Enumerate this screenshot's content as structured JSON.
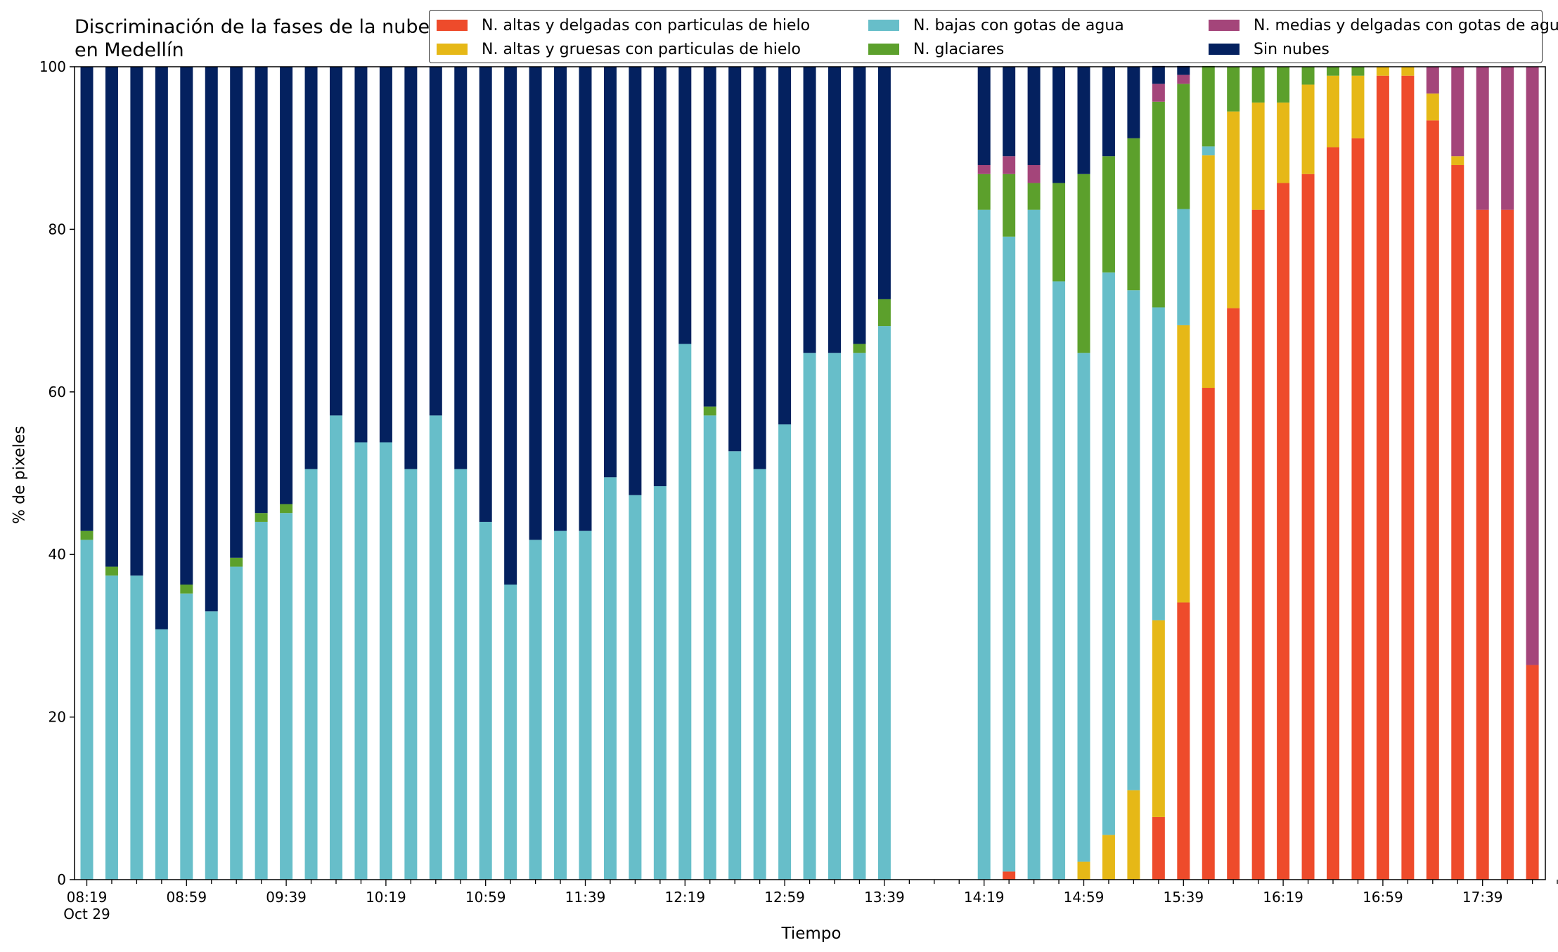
{
  "chart_data": {
    "type": "bar",
    "stacked": true,
    "title": "Discriminación de la fases de la nube en Medellín",
    "xlabel": "Tiempo",
    "ylabel": "% de pixeles",
    "ylim": [
      0,
      100
    ],
    "yticks": [
      0,
      20,
      40,
      60,
      80,
      100
    ],
    "grid": false,
    "legend_position": "top-right",
    "date_label": "Oct 29",
    "x_tick_labels": [
      "08:19",
      "08:59",
      "09:39",
      "10:19",
      "10:59",
      "11:39",
      "12:19",
      "12:59",
      "13:39",
      "14:19",
      "14:59",
      "15:39",
      "16:19",
      "16:59",
      "17:39"
    ],
    "categories": [
      "08:19",
      "08:29",
      "08:39",
      "08:49",
      "08:59",
      "09:09",
      "09:19",
      "09:29",
      "09:39",
      "09:49",
      "09:59",
      "10:09",
      "10:19",
      "10:29",
      "10:39",
      "10:49",
      "10:59",
      "11:09",
      "11:19",
      "11:29",
      "11:39",
      "11:49",
      "11:59",
      "12:09",
      "12:19",
      "12:29",
      "12:39",
      "12:49",
      "12:59",
      "13:09",
      "13:19",
      "13:29",
      "13:39",
      "13:49",
      "13:59",
      "14:09",
      "14:19",
      "14:29",
      "14:39",
      "14:49",
      "14:59",
      "15:09",
      "15:19",
      "15:29",
      "15:39",
      "15:49",
      "15:59",
      "16:09",
      "16:19",
      "16:29",
      "16:39",
      "16:49",
      "16:59",
      "17:09",
      "17:19",
      "17:29",
      "17:39",
      "17:49",
      "17:59"
    ],
    "series": [
      {
        "name": "N. altas y delgadas con particulas de hielo",
        "color": "#EE4B2B",
        "values": [
          0,
          0,
          0,
          0,
          0,
          0,
          0,
          0,
          0,
          0,
          0,
          0,
          0,
          0,
          0,
          0,
          0,
          0,
          0,
          0,
          0,
          0,
          0,
          0,
          0,
          0,
          0,
          0,
          0,
          0,
          0,
          0,
          0,
          null,
          null,
          null,
          0,
          1,
          0,
          0,
          0,
          0,
          0,
          7.7,
          34.1,
          60.5,
          70.3,
          82.4,
          85.7,
          86.8,
          90.1,
          91.2,
          98.9,
          98.9,
          93.4,
          87.9,
          82.4,
          82.4,
          26.4
        ]
      },
      {
        "name": "N. altas y gruesas con particulas de hielo",
        "color": "#E6B817",
        "values": [
          0,
          0,
          0,
          0,
          0,
          0,
          0,
          0,
          0,
          0,
          0,
          0,
          0,
          0,
          0,
          0,
          0,
          0,
          0,
          0,
          0,
          0,
          0,
          0,
          0,
          0,
          0,
          0,
          0,
          0,
          0,
          0,
          0,
          null,
          null,
          null,
          0,
          0,
          0,
          0,
          2.2,
          5.5,
          11,
          24.2,
          34.1,
          28.6,
          24.2,
          13.2,
          9.9,
          11,
          8.8,
          7.7,
          1.1,
          1.1,
          3.3,
          1.1,
          0,
          0,
          0
        ]
      },
      {
        "name": "N. bajas con gotas de agua",
        "color": "#67BEC9",
        "values": [
          41.8,
          37.4,
          37.4,
          30.8,
          35.2,
          33,
          38.5,
          44,
          45.1,
          50.5,
          57.1,
          53.8,
          53.8,
          50.5,
          57.1,
          50.5,
          44,
          36.3,
          41.8,
          42.9,
          42.9,
          49.5,
          47.3,
          48.4,
          65.9,
          57.1,
          52.7,
          50.5,
          56,
          64.8,
          64.8,
          64.8,
          68.1,
          null,
          null,
          null,
          82.4,
          78.1,
          82.4,
          73.6,
          62.6,
          69.2,
          61.5,
          38.5,
          14.3,
          1.1,
          0,
          0,
          0,
          0,
          0,
          0,
          0,
          0,
          0,
          0,
          0,
          0,
          0
        ]
      },
      {
        "name": "N. glaciares",
        "color": "#5CA02C",
        "values": [
          1.1,
          1.1,
          0,
          0,
          1.1,
          0,
          1.1,
          1.1,
          1.1,
          0,
          0,
          0,
          0,
          0,
          0,
          0,
          0,
          0,
          0,
          0,
          0,
          0,
          0,
          0,
          0,
          1.1,
          0,
          0,
          0,
          0,
          0,
          1.1,
          3.3,
          null,
          null,
          null,
          4.4,
          7.7,
          3.3,
          12.1,
          22,
          14.3,
          18.7,
          25.3,
          15.4,
          9.9,
          5.5,
          4.4,
          4.4,
          2.2,
          1.1,
          1.1,
          0,
          0,
          0,
          0,
          0,
          0,
          0
        ]
      },
      {
        "name": "N. medias y delgadas con gotas de agua",
        "color": "#A4457A",
        "values": [
          0,
          0,
          0,
          0,
          0,
          0,
          0,
          0,
          0,
          0,
          0,
          0,
          0,
          0,
          0,
          0,
          0,
          0,
          0,
          0,
          0,
          0,
          0,
          0,
          0,
          0,
          0,
          0,
          0,
          0,
          0,
          0,
          0,
          null,
          null,
          null,
          1.1,
          2.2,
          2.2,
          0,
          0,
          0,
          0,
          2.2,
          1.1,
          0,
          0,
          0,
          0,
          0,
          0,
          0,
          0,
          0,
          3.3,
          11,
          17.6,
          17.6,
          73.6
        ]
      },
      {
        "name": "Sin nubes",
        "color": "#04215F",
        "values": [
          57.1,
          61.5,
          62.6,
          69.2,
          63.7,
          67,
          60.4,
          54.9,
          53.8,
          49.5,
          42.9,
          46.2,
          46.2,
          49.5,
          42.9,
          49.5,
          56,
          63.7,
          58.2,
          57.1,
          57.1,
          50.5,
          52.7,
          51.6,
          34.1,
          41.8,
          47.3,
          49.5,
          44,
          35.2,
          35.2,
          34.1,
          28.6,
          null,
          null,
          null,
          12.1,
          11,
          12.1,
          14.3,
          13.2,
          11,
          8.8,
          2.2,
          1.1,
          0,
          0,
          0,
          0,
          0,
          0,
          0,
          0,
          0,
          0,
          0,
          0,
          0,
          0
        ]
      }
    ]
  }
}
